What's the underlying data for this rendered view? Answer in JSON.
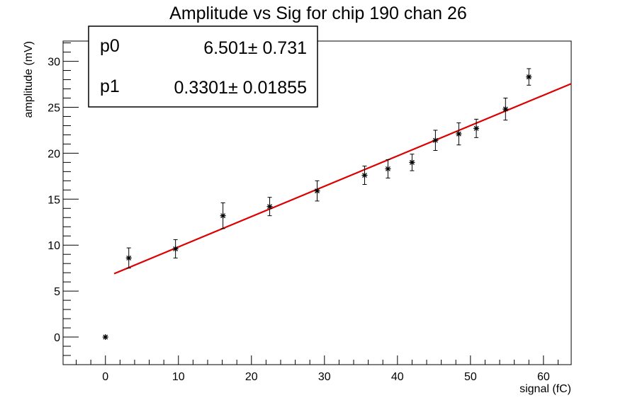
{
  "chart_data": {
    "type": "scatter",
    "title": "Amplitude vs Sig for chip 190 chan 26",
    "xlabel": "signal (fC)",
    "ylabel": "amplitude (mV)",
    "xlim": [
      -5.8,
      63.8
    ],
    "ylim": [
      -3,
      32.2
    ],
    "x_ticks": [
      0,
      10,
      20,
      30,
      40,
      50,
      60
    ],
    "y_ticks": [
      0,
      5,
      10,
      15,
      20,
      25,
      30
    ],
    "grid": false,
    "series": [
      {
        "marker": "star",
        "color": "#000000",
        "points": [
          {
            "x": 0.0,
            "y": 0.0,
            "err": 0.0
          },
          {
            "x": 3.2,
            "y": 8.6,
            "err": 1.1
          },
          {
            "x": 9.6,
            "y": 9.6,
            "err": 1.0
          },
          {
            "x": 16.1,
            "y": 13.2,
            "err": 1.4
          },
          {
            "x": 22.5,
            "y": 14.2,
            "err": 1.0
          },
          {
            "x": 29.0,
            "y": 15.9,
            "err": 1.1
          },
          {
            "x": 35.5,
            "y": 17.6,
            "err": 1.0
          },
          {
            "x": 38.7,
            "y": 18.3,
            "err": 1.0
          },
          {
            "x": 42.0,
            "y": 19.0,
            "err": 0.9
          },
          {
            "x": 45.2,
            "y": 21.4,
            "err": 1.1
          },
          {
            "x": 48.4,
            "y": 22.1,
            "err": 1.2
          },
          {
            "x": 50.8,
            "y": 22.7,
            "err": 1.0
          },
          {
            "x": 54.8,
            "y": 24.8,
            "err": 1.2
          },
          {
            "x": 58.0,
            "y": 28.3,
            "err": 0.9
          }
        ]
      }
    ],
    "fit": {
      "function": "linear",
      "color": "#dd0000",
      "x_range": [
        1.2,
        63.8
      ],
      "p0": 6.501,
      "p1": 0.3301
    },
    "stats": [
      {
        "name": "p0",
        "value": "6.501",
        "error": "0.731"
      },
      {
        "name": "p1",
        "value": "0.3301",
        "error": "0.01855"
      }
    ],
    "legend_placement": "top-left"
  }
}
